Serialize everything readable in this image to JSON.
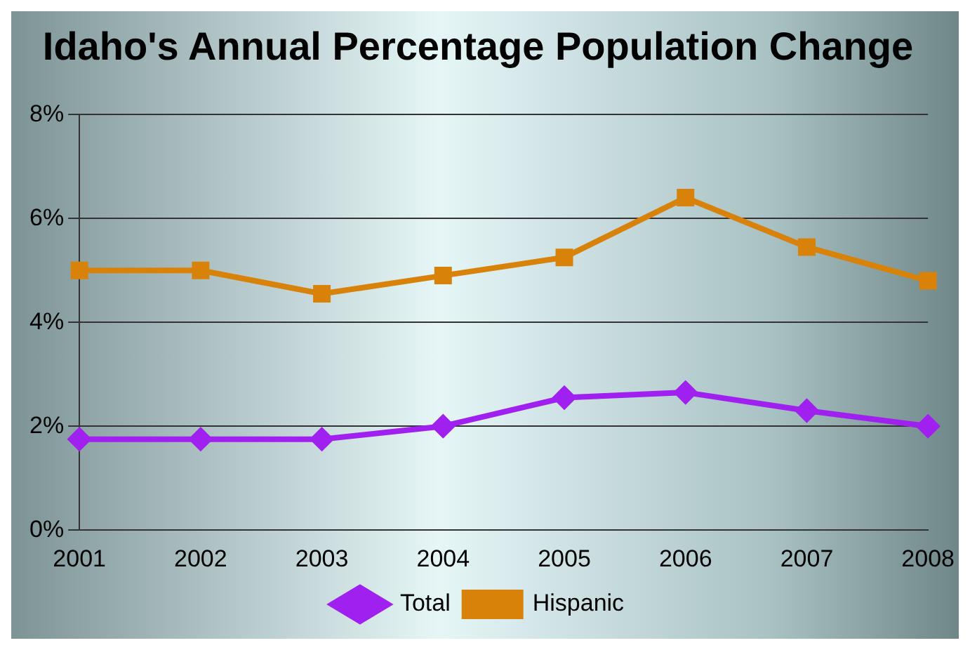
{
  "chart_data": {
    "type": "line",
    "title": "Idaho's Annual Percentage Population Change",
    "categories": [
      "2001",
      "2002",
      "2003",
      "2004",
      "2005",
      "2006",
      "2007",
      "2008"
    ],
    "series": [
      {
        "name": "Total",
        "color": "#a020f0",
        "marker": "diamond",
        "values": [
          1.75,
          1.75,
          1.75,
          2.0,
          2.55,
          2.65,
          2.3,
          2.0
        ]
      },
      {
        "name": "Hispanic",
        "color": "#d9820a",
        "marker": "square",
        "values": [
          5.0,
          5.0,
          4.55,
          4.9,
          5.25,
          6.4,
          5.45,
          4.8
        ]
      }
    ],
    "ylim": [
      0,
      8
    ],
    "yticks": [
      {
        "value": 0,
        "label": "0%"
      },
      {
        "value": 2,
        "label": "2%"
      },
      {
        "value": 4,
        "label": "4%"
      },
      {
        "value": 6,
        "label": "6%"
      },
      {
        "value": 8,
        "label": "8%"
      }
    ],
    "grid": "y",
    "legend": "bottom"
  }
}
